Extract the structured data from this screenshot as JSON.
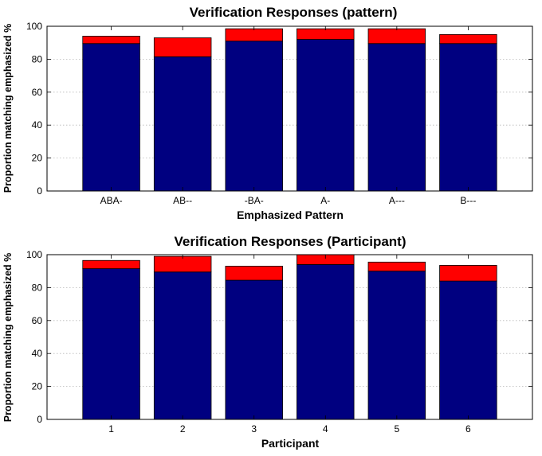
{
  "chart_data": [
    {
      "type": "bar",
      "stacked": true,
      "title": "Verification Responses (pattern)",
      "xlabel": "Emphasized Pattern",
      "ylabel": "Proportion matching emphasized %",
      "categories": [
        "ABA-",
        "AB--",
        "-BA-",
        "A-",
        "A---",
        "B---"
      ],
      "series": [
        {
          "color": "#000080",
          "values": [
            89.5,
            81.5,
            91,
            92,
            89.5,
            89.5
          ]
        },
        {
          "color": "#ff0000",
          "values": [
            4.5,
            11.5,
            7.5,
            6.5,
            9,
            5.5
          ]
        }
      ],
      "ylim": [
        0,
        100
      ],
      "yticks": [
        0,
        20,
        40,
        60,
        80,
        100
      ],
      "grid": true
    },
    {
      "type": "bar",
      "stacked": true,
      "title": "Verification Responses (Participant)",
      "xlabel": "Participant",
      "ylabel": "Proportion matching emphasized %",
      "categories": [
        "1",
        "2",
        "3",
        "4",
        "5",
        "6"
      ],
      "series": [
        {
          "color": "#000080",
          "values": [
            91.5,
            89.5,
            84.5,
            94,
            90,
            84
          ]
        },
        {
          "color": "#ff0000",
          "values": [
            5,
            9.5,
            8.5,
            6,
            5.5,
            9.5
          ]
        }
      ],
      "ylim": [
        0,
        100
      ],
      "yticks": [
        0,
        20,
        40,
        60,
        80,
        100
      ],
      "grid": true
    }
  ]
}
